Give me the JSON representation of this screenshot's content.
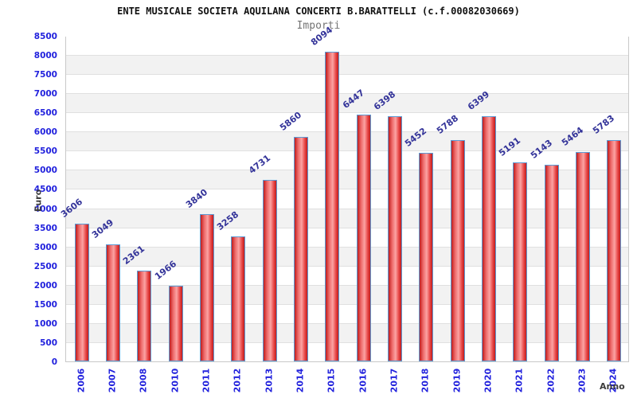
{
  "chart_data": {
    "type": "bar",
    "title": "ENTE MUSICALE SOCIETA AQUILANA CONCERTI B.BARATTELLI (c.f.00082030669)",
    "subtitle": "Importi",
    "xlabel": "Anno",
    "ylabel": "Euro",
    "categories": [
      "2006",
      "2007",
      "2008",
      "2010",
      "2011",
      "2012",
      "2013",
      "2014",
      "2015",
      "2016",
      "2017",
      "2018",
      "2019",
      "2020",
      "2021",
      "2022",
      "2023",
      "2024"
    ],
    "values": [
      3606,
      3049,
      2361,
      1966,
      3840,
      3258,
      4731,
      5860,
      8094,
      6447,
      6398,
      5452,
      5788,
      6399,
      5191,
      5143,
      5464,
      5783
    ],
    "ylim": [
      0,
      8500
    ],
    "ytick_step": 500,
    "legend": "none",
    "grid": "horizontal gridlines every 500 with alternating white/gray bands",
    "colors": {
      "bar_fill_edge": "#bf1c1c",
      "bar_fill_center": "#fba3a3",
      "bar_border": "#5b9bd5",
      "tick_label": "#2222dd",
      "value_label": "#333399",
      "band_alt": "#f2f2f2",
      "grid_line": "#e0e0e0",
      "frame": "#c9c9c9",
      "axis_title": "#3c3c3c",
      "title": "#111111",
      "subtitle": "#757575"
    }
  }
}
